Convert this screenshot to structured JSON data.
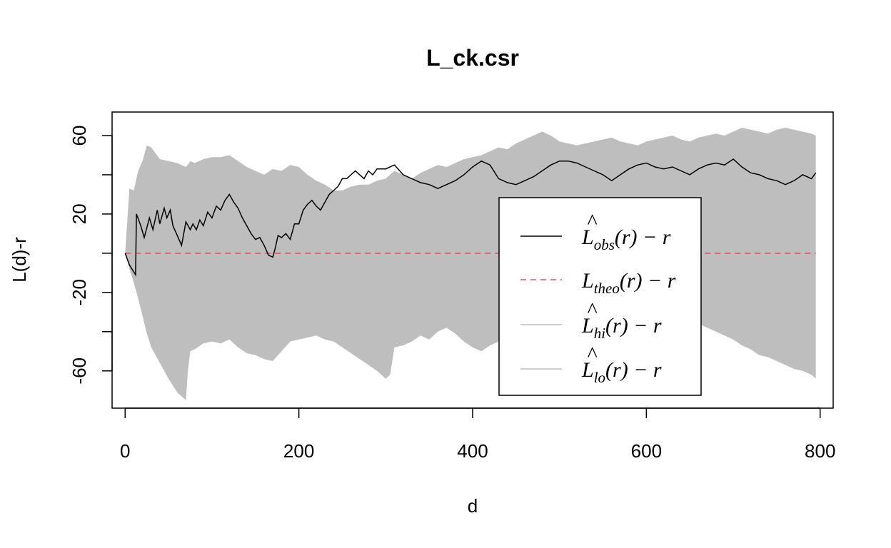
{
  "chart_data": {
    "type": "line",
    "title": "L_ck.csr",
    "xlabel": "d",
    "ylabel": "L(d)-r",
    "xlim": [
      -15,
      815
    ],
    "ylim": [
      -79,
      72
    ],
    "xticks": [
      0,
      200,
      400,
      600,
      800
    ],
    "yticks": [
      -60,
      -40,
      -20,
      0,
      20,
      40,
      60
    ],
    "ytick_labels": [
      "-60",
      "",
      "-20",
      "",
      "20",
      "",
      "60"
    ],
    "xtick_labels": [
      "0",
      "200",
      "400",
      "600",
      "800"
    ],
    "legend_position": "center-right",
    "colors": {
      "obs": "#000000",
      "theo": "#df536b",
      "envelope": "#bebebe"
    },
    "series": [
      {
        "key": "obs",
        "style": "solid",
        "x": [
          0,
          5,
          12,
          13,
          18,
          22,
          28,
          32,
          37,
          40,
          45,
          48,
          52,
          55,
          60,
          65,
          70,
          75,
          78,
          82,
          86,
          90,
          95,
          100,
          105,
          110,
          115,
          120,
          125,
          130,
          135,
          140,
          145,
          150,
          155,
          160,
          165,
          170,
          173,
          176,
          180,
          185,
          190,
          195,
          200,
          205,
          210,
          215,
          220,
          225,
          230,
          235,
          240,
          245,
          250,
          255,
          260,
          265,
          270,
          275,
          280,
          285,
          290,
          300,
          310,
          320,
          330,
          340,
          350,
          360,
          370,
          380,
          390,
          400,
          410,
          420,
          430,
          440,
          450,
          460,
          470,
          480,
          490,
          500,
          510,
          520,
          530,
          540,
          550,
          560,
          570,
          580,
          590,
          600,
          610,
          620,
          630,
          640,
          650,
          660,
          670,
          680,
          690,
          700,
          710,
          720,
          730,
          740,
          750,
          760,
          770,
          780,
          790,
          795
        ],
        "y": [
          0,
          -6,
          -11,
          20,
          14,
          8,
          18,
          12,
          22,
          15,
          23,
          18,
          22,
          14,
          9,
          4,
          16,
          12,
          15,
          12,
          17,
          14,
          21,
          18,
          24,
          22,
          27,
          30,
          26,
          23,
          18,
          14,
          10,
          7,
          8,
          4,
          -1,
          -2,
          3,
          9,
          8,
          10,
          7,
          15,
          15,
          22,
          25,
          27,
          24,
          22,
          26,
          30,
          32,
          34,
          38,
          38,
          40,
          42,
          40,
          38,
          42,
          40,
          43,
          43,
          45,
          40,
          38,
          36,
          35,
          33,
          35,
          37,
          40,
          44,
          47,
          45,
          38,
          36,
          35,
          37,
          39,
          42,
          45,
          47,
          47,
          46,
          44,
          42,
          40,
          37,
          40,
          43,
          45,
          46,
          44,
          43,
          44,
          42,
          40,
          43,
          45,
          46,
          45,
          48,
          44,
          41,
          40,
          38,
          37,
          35,
          37,
          40,
          38,
          41
        ]
      },
      {
        "key": "theo",
        "style": "dashed",
        "x": [
          0,
          795
        ],
        "y": [
          0,
          0
        ]
      }
    ],
    "envelope": {
      "x": [
        0,
        5,
        10,
        15,
        20,
        25,
        30,
        40,
        50,
        60,
        70,
        72,
        75,
        80,
        90,
        100,
        110,
        120,
        130,
        140,
        150,
        160,
        170,
        180,
        190,
        200,
        210,
        220,
        230,
        240,
        250,
        260,
        270,
        280,
        290,
        300,
        305,
        310,
        320,
        330,
        340,
        350,
        360,
        370,
        380,
        390,
        400,
        410,
        420,
        430,
        440,
        450,
        460,
        470,
        480,
        490,
        500,
        510,
        520,
        530,
        540,
        550,
        560,
        570,
        580,
        590,
        600,
        610,
        620,
        630,
        640,
        650,
        660,
        670,
        680,
        690,
        700,
        710,
        720,
        730,
        740,
        750,
        760,
        770,
        780,
        790,
        795
      ],
      "hi": [
        0,
        33,
        32,
        42,
        47,
        55,
        54,
        48,
        47,
        46,
        44,
        45,
        47,
        46,
        48,
        49,
        49,
        50,
        47,
        44,
        42,
        40,
        43,
        42,
        45,
        44,
        40,
        37,
        35,
        32,
        32,
        34,
        35,
        35,
        37,
        38,
        40,
        42,
        40,
        38,
        41,
        43,
        45,
        44,
        46,
        48,
        49,
        50,
        52,
        54,
        53,
        56,
        58,
        60,
        62,
        60,
        57,
        56,
        55,
        56,
        57,
        58,
        59,
        57,
        56,
        55,
        57,
        58,
        59,
        60,
        58,
        57,
        59,
        60,
        61,
        60,
        62,
        64,
        63,
        62,
        61,
        63,
        64,
        63,
        62,
        61,
        60
      ],
      "lo": [
        0,
        -8,
        -15,
        -23,
        -32,
        -41,
        -48,
        -56,
        -64,
        -71,
        -75,
        -61,
        -50,
        -49,
        -46,
        -45,
        -46,
        -44,
        -48,
        -51,
        -52,
        -54,
        -55,
        -50,
        -45,
        -44,
        -43,
        -42,
        -44,
        -45,
        -48,
        -51,
        -54,
        -57,
        -60,
        -64,
        -62,
        -48,
        -47,
        -45,
        -42,
        -44,
        -40,
        -38,
        -41,
        -45,
        -48,
        -50,
        -47,
        -45,
        -49,
        -51,
        -53,
        -52,
        -50,
        -48,
        -47,
        -45,
        -43,
        -46,
        -48,
        -47,
        -44,
        -42,
        -40,
        -41,
        -43,
        -44,
        -42,
        -40,
        -38,
        -37,
        -36,
        -38,
        -40,
        -42,
        -44,
        -47,
        -49,
        -52,
        -53,
        -55,
        -57,
        -59,
        -60,
        -62,
        -64
      ]
    },
    "legend": [
      {
        "key": "obs",
        "base": "L",
        "hat": true,
        "sub": "obs",
        "suffix": "(r) − r"
      },
      {
        "key": "theo",
        "base": "L",
        "hat": false,
        "sub": "theo",
        "suffix": "(r) − r"
      },
      {
        "key": "hi",
        "base": "L",
        "hat": true,
        "sub": "hi",
        "suffix": "(r) − r"
      },
      {
        "key": "lo",
        "base": "L",
        "hat": true,
        "sub": "lo",
        "suffix": "(r) − r"
      }
    ]
  }
}
